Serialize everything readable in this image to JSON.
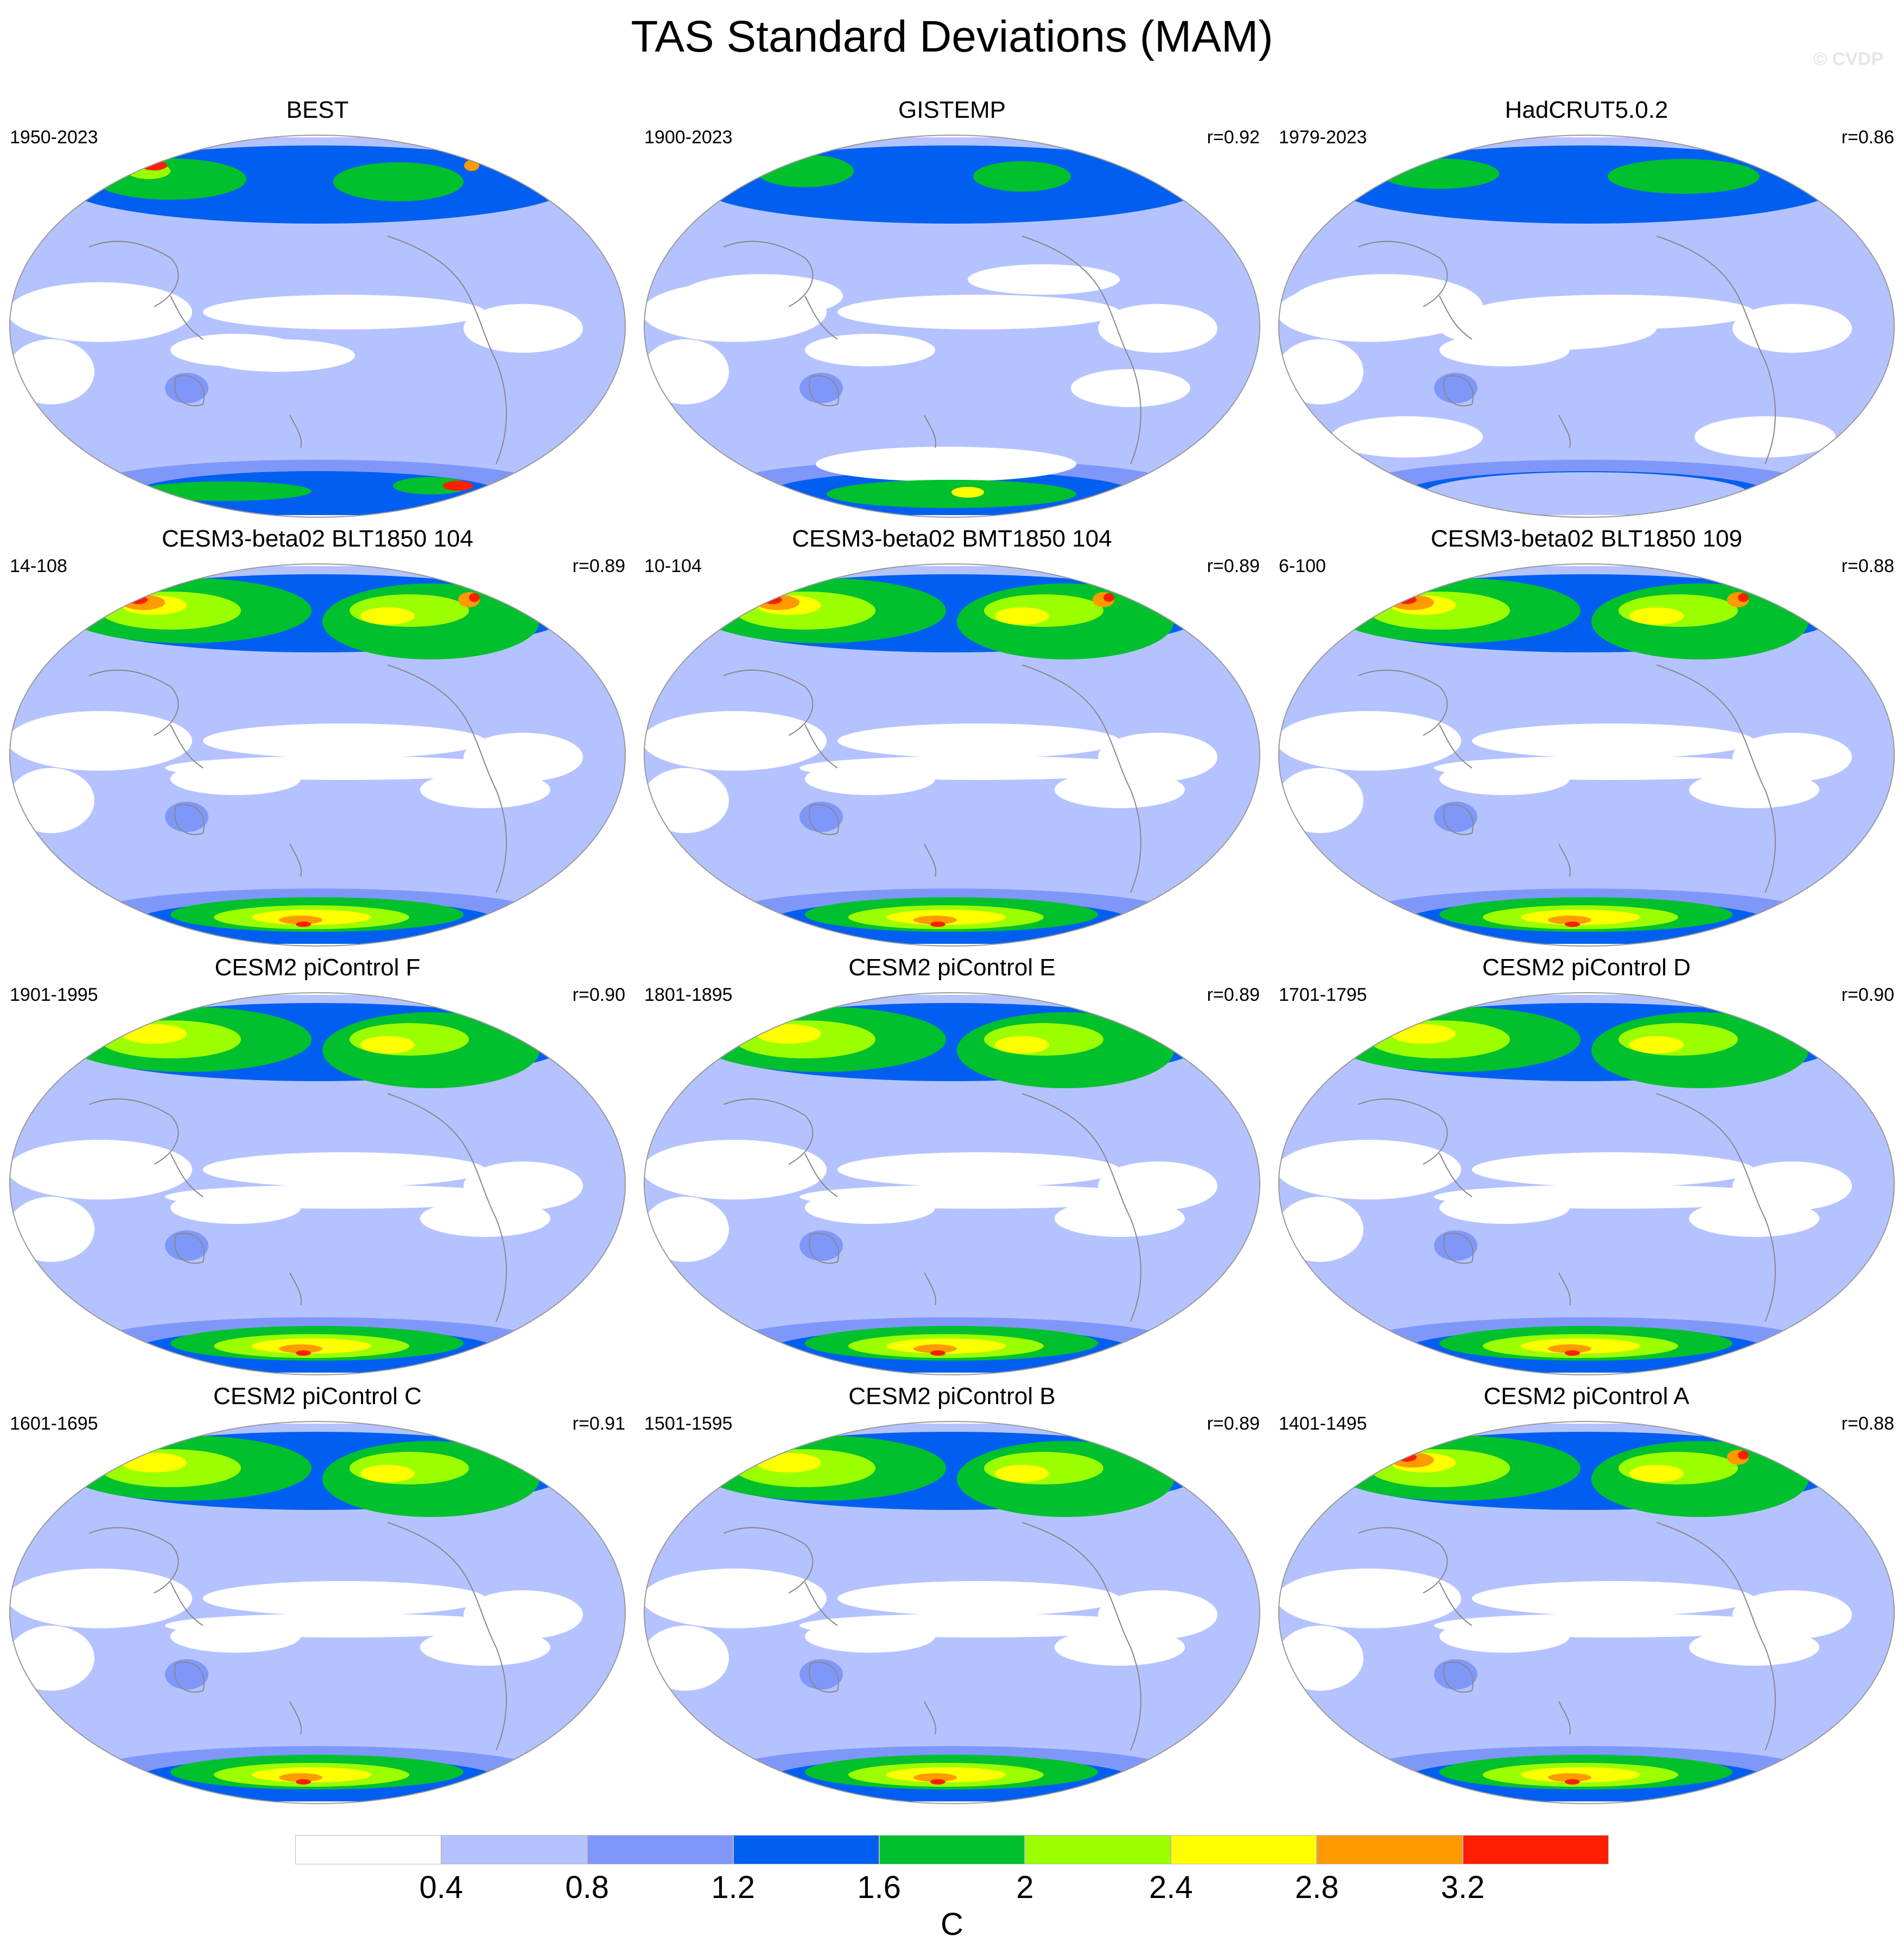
{
  "title": "TAS Standard Deviations (MAM)",
  "watermark": "© CVDP",
  "colors": {
    "levels": [
      "#ffffff",
      "#b4c3ff",
      "#8097fa",
      "#005ff0",
      "#00c02e",
      "#9bff00",
      "#ffff00",
      "#ff9a00",
      "#ff1e00"
    ],
    "map_outline": "#999999",
    "coastline": "#888888"
  },
  "panels": [
    {
      "title": "BEST",
      "years": "1950-2023",
      "r": "",
      "pattern": "obs1"
    },
    {
      "title": "GISTEMP",
      "years": "1900-2023",
      "r": "r=0.92",
      "pattern": "obs2"
    },
    {
      "title": "HadCRUT5.0.2",
      "years": "1979-2023",
      "r": "r=0.86",
      "pattern": "obs3"
    },
    {
      "title": "CESM3-beta02 BLT1850 104",
      "years": "14-108",
      "r": "r=0.89",
      "pattern": "model-hot"
    },
    {
      "title": "CESM3-beta02 BMT1850 104",
      "years": "10-104",
      "r": "r=0.89",
      "pattern": "model-hot"
    },
    {
      "title": "CESM3-beta02 BLT1850 109",
      "years": "6-100",
      "r": "r=0.88",
      "pattern": "model-hot"
    },
    {
      "title": "CESM2 piControl F",
      "years": "1901-1995",
      "r": "r=0.90",
      "pattern": "model"
    },
    {
      "title": "CESM2 piControl E",
      "years": "1801-1895",
      "r": "r=0.89",
      "pattern": "model"
    },
    {
      "title": "CESM2 piControl D",
      "years": "1701-1795",
      "r": "r=0.90",
      "pattern": "model"
    },
    {
      "title": "CESM2 piControl C",
      "years": "1601-1695",
      "r": "r=0.91",
      "pattern": "model"
    },
    {
      "title": "CESM2 piControl B",
      "years": "1501-1595",
      "r": "r=0.89",
      "pattern": "model"
    },
    {
      "title": "CESM2 piControl A",
      "years": "1401-1495",
      "r": "r=0.88",
      "pattern": "model-hot"
    }
  ],
  "colorbar": {
    "labels": [
      "0.4",
      "0.8",
      "1.2",
      "1.6",
      "2",
      "2.4",
      "2.8",
      "3.2"
    ],
    "unit": "C"
  }
}
